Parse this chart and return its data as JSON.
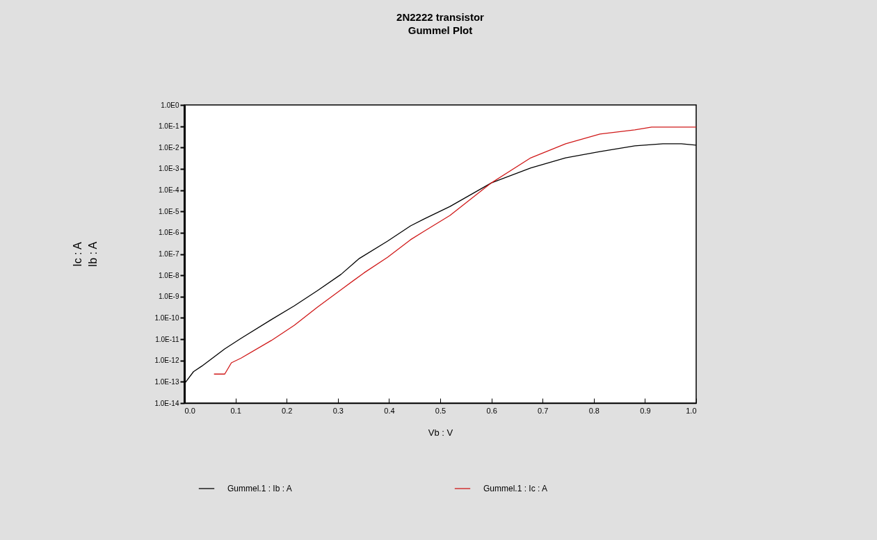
{
  "chart_data": {
    "type": "line",
    "title": "2N2222 transistor",
    "subtitle": "Gummel Plot",
    "xlabel": "Vb : V",
    "ylabel": "Ic : A\nIb : A",
    "log": "y",
    "grid": false,
    "marker": "none",
    "line_style": "solid",
    "legend": "bottom",
    "xlim": [
      0,
      1
    ],
    "xticks": [
      {
        "value": 0,
        "label": "0.0"
      },
      0.1,
      0.2,
      0.3,
      0.4,
      0.5,
      0.6,
      0.7,
      0.8,
      0.9,
      {
        "value": 1,
        "label": "1.0"
      }
    ],
    "ylim": [
      1e-14,
      1
    ],
    "yticks": [
      {
        "value": 1e-14,
        "label": "1.0E-14"
      },
      {
        "value": 1e-13,
        "label": "1.0E-13"
      },
      {
        "value": 1e-12,
        "label": "1.0E-12"
      },
      {
        "value": 1e-11,
        "label": "1.0E-11"
      },
      {
        "value": 1e-10,
        "label": "1.0E-10"
      },
      {
        "value": 1e-09,
        "label": "1.0E-9"
      },
      {
        "value": 1e-08,
        "label": "1.0E-8"
      },
      {
        "value": 1e-07,
        "label": "1.0E-7"
      },
      {
        "value": 1e-06,
        "label": "1.0E-6"
      },
      {
        "value": 1e-05,
        "label": "1.0E-5"
      },
      {
        "value": 0.0001,
        "label": "1.0E-4"
      },
      {
        "value": 0.001,
        "label": "1.0E-3"
      },
      {
        "value": 0.01,
        "label": "1.0E-2"
      },
      {
        "value": 0.1,
        "label": "1.0E-1"
      },
      {
        "value": 1,
        "label": "1.0E0"
      }
    ],
    "series": [
      {
        "name": "Gummel.1 : Ib : A",
        "color": "#000000",
        "x": [
          0,
          0.018,
          0.034,
          0.079,
          0.111,
          0.17,
          0.215,
          0.26,
          0.306,
          0.342,
          0.397,
          0.442,
          0.469,
          0.519,
          0.6,
          0.677,
          0.745,
          0.812,
          0.88,
          0.935,
          0.971,
          1.0
        ],
        "values": [
          8e-14,
          3e-13,
          5.4e-13,
          3.5e-12,
          1.1e-11,
          8.3e-11,
          3.7e-10,
          1.9e-09,
          1.1e-08,
          6.2e-08,
          4e-07,
          2.1e-06,
          4.5e-06,
          1.7e-05,
          0.00022,
          0.0011,
          0.0033,
          0.0065,
          0.012,
          0.015,
          0.015,
          0.013
        ]
      },
      {
        "name": "Gummel.1 : Ic : A",
        "color": "#d01818",
        "x": [
          0.058,
          0.079,
          0.092,
          0.111,
          0.17,
          0.215,
          0.26,
          0.306,
          0.351,
          0.397,
          0.442,
          0.469,
          0.519,
          0.6,
          0.677,
          0.745,
          0.812,
          0.88,
          0.913,
          1.0
        ],
        "values": [
          2.3e-13,
          2.3e-13,
          7.8e-13,
          1.3e-12,
          8.7e-12,
          4.5e-11,
          3.2e-10,
          2.1e-09,
          1.3e-08,
          7e-08,
          4.7e-07,
          1.2e-06,
          6.5e-06,
          0.00022,
          0.0033,
          0.015,
          0.043,
          0.068,
          0.091,
          0.091
        ]
      }
    ]
  }
}
